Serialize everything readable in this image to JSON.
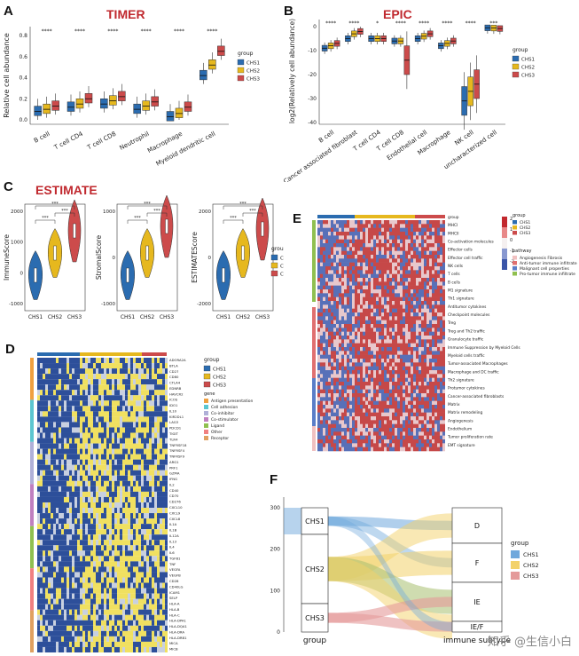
{
  "colors": {
    "chs1": "#2b6cb0",
    "chs2": "#e6b81e",
    "chs3": "#cc4b4b",
    "title": "#c0282e",
    "heat_lo": "#3a55a8",
    "heat_hi": "#c2282e"
  },
  "panelA": {
    "label": "A",
    "title": "TIMER",
    "ylabel": "Relative cell abundance",
    "yticks": [
      "0.0",
      "0.2",
      "0.4",
      "0.6",
      "0.8"
    ],
    "sig": [
      "****",
      "****",
      "****",
      "****",
      "****",
      "****"
    ],
    "legend": {
      "title": "group",
      "items": [
        "CHS1",
        "CHS2",
        "CHS3"
      ]
    },
    "categories": [
      "B cell",
      "T cell CD4",
      "T cell CD8",
      "Neutrophil",
      "Macrophage",
      "Myeloid dendritic cell"
    ]
  },
  "panelB": {
    "label": "B",
    "title": "EPIC",
    "ylabel": "log2(Relatively cell abundance)",
    "yticks": [
      "0",
      "-10",
      "-20",
      "-30",
      "-40"
    ],
    "sig": [
      "****",
      "****",
      "*",
      "****",
      "****",
      "****",
      "****",
      "***"
    ],
    "legend": {
      "title": "group",
      "items": [
        "CHS1",
        "CHS2",
        "CHS3"
      ]
    },
    "categories": [
      "B cell",
      "Cancer associated fibroblast",
      "T cell CD4",
      "T cell CD8",
      "Endothelial cell",
      "Macrophage",
      "NK cell",
      "uncharacterized cell"
    ]
  },
  "panelC": {
    "label": "C",
    "title": "ESTIMATE",
    "plots": [
      {
        "ylabel": "ImmuneScore",
        "yticks": [
          "2000",
          "1000",
          "0",
          "-1000"
        ]
      },
      {
        "ylabel": "StromalScore",
        "yticks": [
          "1000",
          "0",
          "-1000"
        ]
      },
      {
        "ylabel": "ESTIMATEScore",
        "yticks": [
          "2000",
          "0",
          "-2000"
        ]
      }
    ],
    "sig": "***",
    "xcats": [
      "CHS1",
      "CHS2",
      "CHS3"
    ],
    "legend": {
      "title": "group",
      "items": [
        "CHS1",
        "CHS2",
        "CHS3"
      ]
    }
  },
  "panelD": {
    "label": "D",
    "genes": [
      "ADORA2A",
      "BTLA",
      "CD27",
      "CD80",
      "CTLA4",
      "EDNRB",
      "HAVCR2",
      "ICOS",
      "IDO1",
      "IL10",
      "KIR2DL1",
      "LAG3",
      "PDCD1",
      "TIGIT",
      "TLR4",
      "TNFRSF18",
      "TNFRSF4",
      "TNFRSF9",
      "ARG1",
      "PRF1",
      "GZMA",
      "IFNG",
      "IL2",
      "CD40",
      "CD70",
      "CD276",
      "CXCL10",
      "CXCL9",
      "CXCL8",
      "IL1A",
      "IL1B",
      "IL12A",
      "IL13",
      "IL4",
      "IL6",
      "TGFB1",
      "TNF",
      "VEGFA",
      "VEGFB",
      "CD28",
      "CD40LG",
      "ICAM1",
      "SELP",
      "HLA-A",
      "HLA-B",
      "HLA-C",
      "HLA-DPA1",
      "HLA-DQA1",
      "HLA-DRA",
      "HLA-DRB1",
      "MICA",
      "MICB"
    ],
    "legend1": {
      "title": "group",
      "items": [
        "CHS1",
        "CHS2",
        "CHS3"
      ]
    },
    "legend2": {
      "title": "gene",
      "items": [
        "Antigen presentation",
        "Cell adhesion",
        "Co-inhibitor",
        "Co-stimulator",
        "Ligand",
        "Other",
        "Receptor"
      ]
    }
  },
  "panelE": {
    "label": "E",
    "rows": [
      "group",
      "MHCI",
      "MHCII",
      "Co-activation molecules",
      "Effector cells",
      "Effector cell traffic",
      "NK cells",
      "T cells",
      "B cells",
      "M1 signature",
      "Th1 signature",
      "Antitumor cytokines",
      "Checkpoint molecules",
      "Treg",
      "Treg and Th2 traffic",
      "Granulocyte traffic",
      "Immune Suppression by Myeloid Cells",
      "Myeloid cells traffic",
      "Tumor-associated Macrophages",
      "Macrophage and DC traffic",
      "Th2 signature",
      "Protumor cytokines",
      "Cancer-associated fibroblasts",
      "Matrix",
      "Matrix remodeling",
      "Angiogenesis",
      "Endothelium",
      "Tumor proliferation rate",
      "EMT signature"
    ],
    "scale": [
      "2",
      "1",
      "0",
      "-1",
      "-2"
    ],
    "legend1": {
      "title": "group",
      "items": [
        "CHS1",
        "CHS2",
        "CHS3"
      ]
    },
    "legend2": {
      "title": "pathway",
      "items": [
        "Angiogenesis Fibrosis",
        "Anti-tumor immune infiltrate",
        "Malignant cell properties",
        "Pro-tumor immune infiltrate"
      ]
    }
  },
  "panelF": {
    "label": "F",
    "yticks": [
      "300",
      "200",
      "100",
      "0"
    ],
    "left": [
      "CHS1",
      "CHS2",
      "CHS3"
    ],
    "right": [
      "D",
      "F",
      "IE",
      "IE/F"
    ],
    "xlabels": [
      "group",
      "immune subtype"
    ],
    "legend": {
      "title": "group",
      "items": [
        "CHS1",
        "CHS2",
        "CHS3"
      ]
    }
  },
  "watermark": "知乎 @生信小白"
}
